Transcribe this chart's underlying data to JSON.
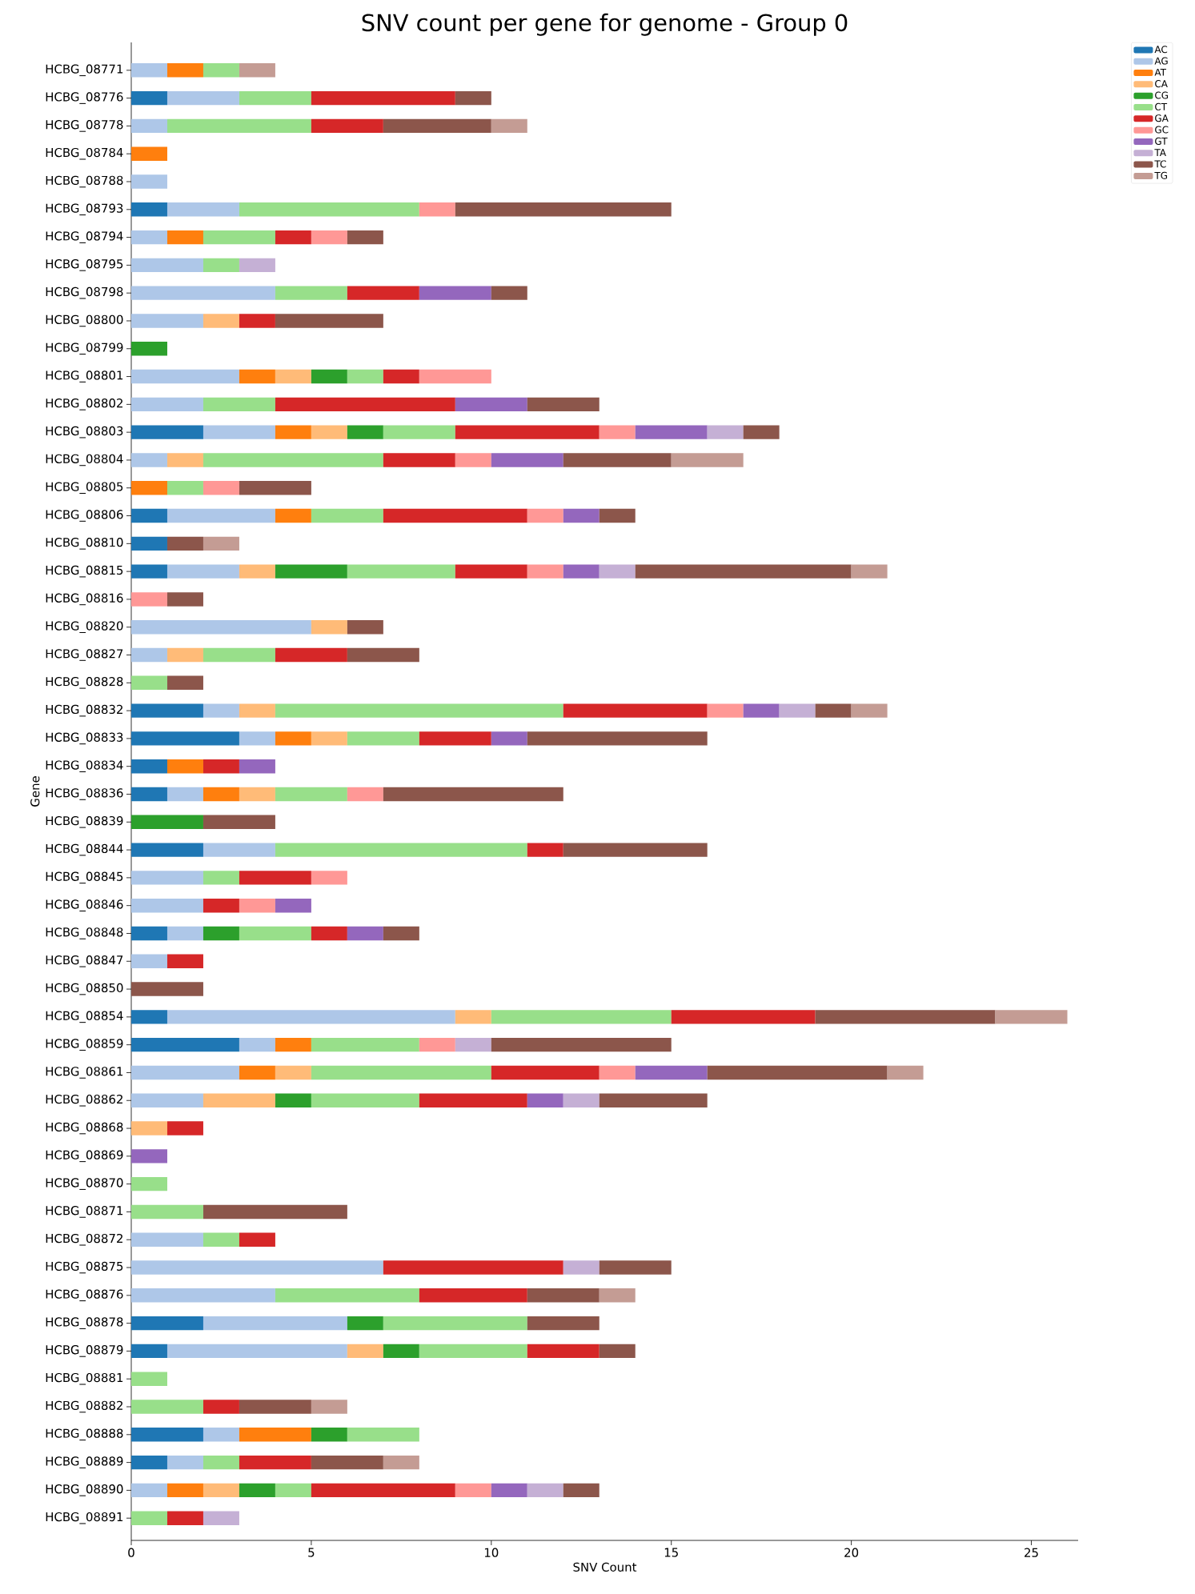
{
  "chart_data": {
    "type": "bar",
    "orientation": "horizontal",
    "stacked": true,
    "title": "SNV count per gene for genome - Group 0",
    "xlabel": "SNV Count",
    "ylabel": "Gene",
    "categories": [
      "HCBG_08771",
      "HCBG_08776",
      "HCBG_08778",
      "HCBG_08784",
      "HCBG_08788",
      "HCBG_08793",
      "HCBG_08794",
      "HCBG_08795",
      "HCBG_08798",
      "HCBG_08800",
      "HCBG_08799",
      "HCBG_08801",
      "HCBG_08802",
      "HCBG_08803",
      "HCBG_08804",
      "HCBG_08805",
      "HCBG_08806",
      "HCBG_08810",
      "HCBG_08815",
      "HCBG_08816",
      "HCBG_08820",
      "HCBG_08827",
      "HCBG_08828",
      "HCBG_08832",
      "HCBG_08833",
      "HCBG_08834",
      "HCBG_08836",
      "HCBG_08839",
      "HCBG_08844",
      "HCBG_08845",
      "HCBG_08846",
      "HCBG_08848",
      "HCBG_08847",
      "HCBG_08850",
      "HCBG_08854",
      "HCBG_08859",
      "HCBG_08861",
      "HCBG_08862",
      "HCBG_08868",
      "HCBG_08869",
      "HCBG_08870",
      "HCBG_08871",
      "HCBG_08872",
      "HCBG_08875",
      "HCBG_08876",
      "HCBG_08878",
      "HCBG_08879",
      "HCBG_08881",
      "HCBG_08882",
      "HCBG_08888",
      "HCBG_08889",
      "HCBG_08890",
      "HCBG_08891"
    ],
    "xlim": [
      0,
      26.3
    ],
    "xticks": [
      0,
      5,
      10,
      15,
      20,
      25
    ],
    "legend": "top right",
    "grid": false,
    "series": [
      {
        "name": "AC",
        "color": "#1f77b4",
        "values": [
          null,
          1,
          null,
          null,
          null,
          1,
          null,
          null,
          null,
          null,
          null,
          null,
          null,
          2,
          null,
          null,
          1,
          1,
          1,
          null,
          null,
          null,
          null,
          2,
          3,
          1,
          1,
          null,
          2,
          null,
          null,
          1,
          null,
          null,
          1,
          3,
          null,
          null,
          null,
          null,
          null,
          null,
          null,
          null,
          null,
          2,
          1,
          null,
          null,
          2,
          1,
          null,
          null
        ]
      },
      {
        "name": "AG",
        "color": "#aec7e8",
        "values": [
          1,
          2,
          1,
          null,
          1,
          2,
          1,
          2,
          4,
          2,
          null,
          3,
          2,
          2,
          1,
          null,
          3,
          null,
          2,
          null,
          5,
          1,
          null,
          1,
          1,
          null,
          1,
          null,
          2,
          2,
          2,
          1,
          1,
          null,
          8,
          1,
          3,
          2,
          null,
          null,
          null,
          null,
          2,
          7,
          4,
          4,
          5,
          null,
          null,
          1,
          1,
          1,
          null
        ]
      },
      {
        "name": "AT",
        "color": "#ff7f0e",
        "values": [
          1,
          null,
          null,
          1,
          null,
          null,
          1,
          null,
          null,
          null,
          null,
          1,
          null,
          1,
          null,
          1,
          1,
          null,
          null,
          null,
          null,
          null,
          null,
          null,
          1,
          1,
          1,
          null,
          null,
          null,
          null,
          null,
          null,
          null,
          null,
          1,
          1,
          null,
          null,
          null,
          null,
          null,
          null,
          null,
          null,
          null,
          null,
          null,
          null,
          2,
          null,
          1,
          null
        ]
      },
      {
        "name": "CA",
        "color": "#ffbb78",
        "values": [
          null,
          null,
          null,
          null,
          null,
          null,
          null,
          null,
          null,
          1,
          null,
          1,
          null,
          1,
          1,
          null,
          null,
          null,
          1,
          null,
          1,
          1,
          null,
          1,
          1,
          null,
          1,
          null,
          null,
          null,
          null,
          null,
          null,
          null,
          1,
          null,
          1,
          2,
          1,
          null,
          null,
          null,
          null,
          null,
          null,
          null,
          1,
          null,
          null,
          null,
          null,
          1,
          null
        ]
      },
      {
        "name": "CG",
        "color": "#2ca02c",
        "values": [
          null,
          null,
          null,
          null,
          null,
          null,
          null,
          null,
          null,
          null,
          1,
          1,
          null,
          1,
          null,
          null,
          null,
          null,
          2,
          null,
          null,
          null,
          null,
          null,
          null,
          null,
          null,
          2,
          null,
          null,
          null,
          1,
          null,
          null,
          null,
          null,
          null,
          1,
          null,
          null,
          null,
          null,
          null,
          null,
          null,
          1,
          1,
          null,
          null,
          1,
          null,
          1,
          null
        ]
      },
      {
        "name": "CT",
        "color": "#98df8a",
        "values": [
          1,
          2,
          4,
          null,
          null,
          5,
          2,
          1,
          2,
          null,
          null,
          1,
          2,
          2,
          5,
          1,
          2,
          null,
          3,
          null,
          null,
          2,
          1,
          8,
          2,
          null,
          2,
          null,
          7,
          1,
          null,
          2,
          null,
          null,
          5,
          3,
          5,
          3,
          null,
          null,
          1,
          2,
          1,
          null,
          4,
          4,
          3,
          1,
          2,
          2,
          1,
          1,
          1
        ]
      },
      {
        "name": "GA",
        "color": "#d62728",
        "values": [
          null,
          4,
          2,
          null,
          null,
          null,
          1,
          null,
          2,
          1,
          null,
          1,
          5,
          4,
          2,
          null,
          4,
          null,
          2,
          null,
          null,
          2,
          null,
          4,
          2,
          1,
          null,
          null,
          1,
          2,
          1,
          1,
          1,
          null,
          4,
          null,
          3,
          3,
          1,
          null,
          null,
          null,
          1,
          5,
          3,
          null,
          2,
          null,
          1,
          null,
          2,
          4,
          1
        ]
      },
      {
        "name": "GC",
        "color": "#ff9896",
        "values": [
          null,
          null,
          null,
          null,
          null,
          1,
          1,
          null,
          null,
          null,
          null,
          2,
          null,
          1,
          1,
          1,
          1,
          null,
          1,
          1,
          null,
          null,
          null,
          1,
          null,
          null,
          1,
          null,
          null,
          1,
          1,
          null,
          null,
          null,
          null,
          1,
          1,
          null,
          null,
          null,
          null,
          null,
          null,
          null,
          null,
          null,
          null,
          null,
          null,
          null,
          null,
          1,
          null
        ]
      },
      {
        "name": "GT",
        "color": "#9467bd",
        "values": [
          null,
          null,
          null,
          null,
          null,
          null,
          null,
          null,
          2,
          null,
          null,
          null,
          2,
          2,
          2,
          null,
          1,
          null,
          1,
          null,
          null,
          null,
          null,
          1,
          1,
          1,
          null,
          null,
          null,
          null,
          1,
          1,
          null,
          null,
          null,
          null,
          2,
          1,
          null,
          1,
          null,
          null,
          null,
          null,
          null,
          null,
          null,
          null,
          null,
          null,
          null,
          1,
          null
        ]
      },
      {
        "name": "TA",
        "color": "#c5b0d5",
        "values": [
          null,
          null,
          null,
          null,
          null,
          null,
          null,
          1,
          null,
          null,
          null,
          null,
          null,
          1,
          null,
          null,
          null,
          null,
          1,
          null,
          null,
          null,
          null,
          1,
          null,
          null,
          null,
          null,
          null,
          null,
          null,
          null,
          null,
          null,
          null,
          1,
          null,
          1,
          null,
          null,
          null,
          null,
          null,
          1,
          null,
          null,
          null,
          null,
          null,
          null,
          null,
          1,
          1
        ]
      },
      {
        "name": "TC",
        "color": "#8c564b",
        "values": [
          null,
          1,
          3,
          null,
          null,
          6,
          1,
          null,
          1,
          3,
          null,
          null,
          2,
          1,
          3,
          2,
          1,
          1,
          6,
          1,
          1,
          2,
          1,
          1,
          5,
          null,
          5,
          2,
          4,
          null,
          null,
          1,
          null,
          2,
          5,
          5,
          5,
          3,
          null,
          null,
          null,
          4,
          null,
          2,
          2,
          2,
          1,
          null,
          2,
          null,
          2,
          1,
          null
        ]
      },
      {
        "name": "TG",
        "color": "#c49c94",
        "values": [
          1,
          null,
          1,
          null,
          null,
          null,
          null,
          null,
          null,
          null,
          null,
          null,
          null,
          null,
          2,
          null,
          null,
          1,
          1,
          null,
          null,
          null,
          null,
          1,
          null,
          null,
          null,
          null,
          null,
          null,
          null,
          null,
          null,
          null,
          2,
          null,
          1,
          null,
          null,
          null,
          null,
          null,
          null,
          null,
          1,
          null,
          null,
          null,
          1,
          null,
          1,
          null,
          null
        ]
      }
    ]
  }
}
